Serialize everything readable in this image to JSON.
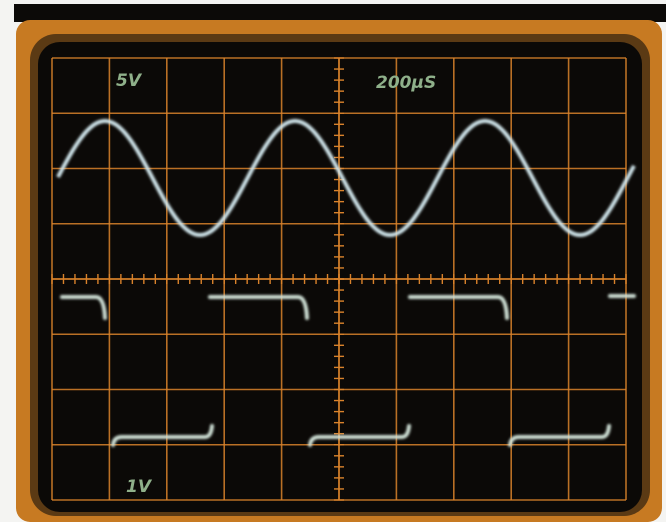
{
  "screen": {
    "labels": {
      "ch1_volts": "5V",
      "timebase": "200µS",
      "ch2_volts": "1V"
    }
  }
}
